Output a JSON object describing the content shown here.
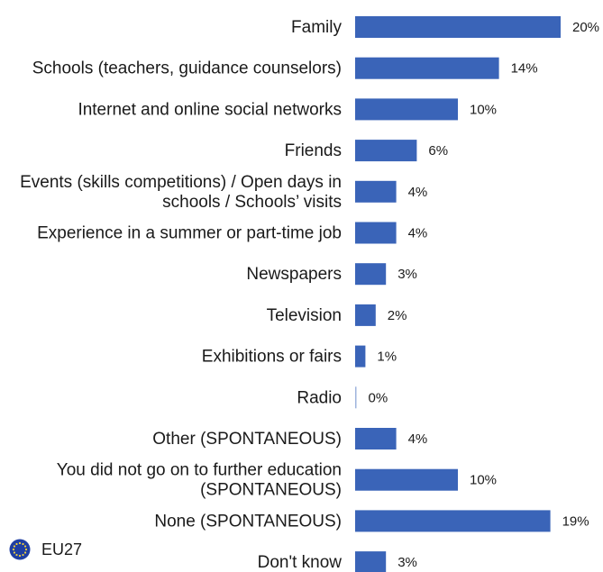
{
  "chart_data": {
    "type": "bar",
    "orientation": "horizontal",
    "categories": [
      "Family",
      "Schools (teachers, guidance counselors)",
      "Internet and online social networks",
      "Friends",
      "Events (skills competitions) / Open days in schools / Schools’ visits",
      "Experience in a summer or part-time job",
      "Newspapers",
      "Television",
      "Exhibitions or fairs",
      "Radio",
      "Other (SPONTANEOUS)",
      "You did not go on to further education (SPONTANEOUS)",
      "None (SPONTANEOUS)",
      "Don't know"
    ],
    "category_lines": [
      [
        "Family"
      ],
      [
        "Schools (teachers, guidance counselors)"
      ],
      [
        "Internet and online social networks"
      ],
      [
        "Friends"
      ],
      [
        "Events (skills competitions) / Open days in",
        "schools / Schools’ visits"
      ],
      [
        "Experience in a summer or part-time job"
      ],
      [
        "Newspapers"
      ],
      [
        "Television"
      ],
      [
        "Exhibitions or fairs"
      ],
      [
        "Radio"
      ],
      [
        "Other (SPONTANEOUS)"
      ],
      [
        "You did not go on to further education",
        "(SPONTANEOUS)"
      ],
      [
        "None (SPONTANEOUS)"
      ],
      [
        "Don't know"
      ]
    ],
    "values": [
      20,
      14,
      10,
      6,
      4,
      4,
      3,
      2,
      1,
      0,
      4,
      10,
      19,
      3
    ],
    "value_labels": [
      "20%",
      "14%",
      "10%",
      "6%",
      "4%",
      "4%",
      "3%",
      "2%",
      "1%",
      "0%",
      "4%",
      "10%",
      "19%",
      "3%"
    ],
    "unit": "%",
    "xlim": [
      0,
      20
    ],
    "grid": false,
    "bar_color": "#3a64b8",
    "legend": {
      "placement": "bottom-left",
      "label": "EU27",
      "icon": "eu-flag-icon"
    }
  }
}
